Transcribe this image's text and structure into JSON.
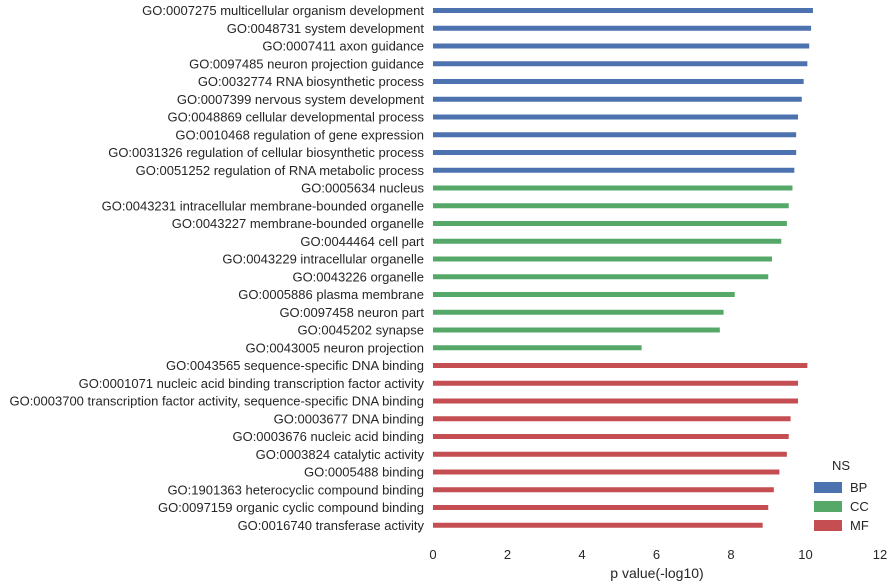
{
  "chart_data": {
    "type": "bar",
    "orientation": "horizontal",
    "categories": [
      "GO:0007275 multicellular organism development",
      "GO:0048731 system development",
      "GO:0007411 axon guidance",
      "GO:0097485 neuron projection guidance",
      "GO:0032774 RNA biosynthetic process",
      "GO:0007399 nervous system development",
      "GO:0048869 cellular developmental process",
      "GO:0010468 regulation of gene expression",
      "GO:0031326 regulation of cellular biosynthetic process",
      "GO:0051252 regulation of RNA metabolic process",
      "GO:0005634 nucleus",
      "GO:0043231 intracellular membrane-bounded organelle",
      "GO:0043227 membrane-bounded organelle",
      "GO:0044464 cell part",
      "GO:0043229 intracellular organelle",
      "GO:0043226 organelle",
      "GO:0005886 plasma membrane",
      "GO:0097458 neuron part",
      "GO:0045202 synapse",
      "GO:0043005 neuron projection",
      "GO:0043565 sequence-specific DNA binding",
      "GO:0001071 nucleic acid binding transcription factor activity",
      "GO:0003700 transcription factor activity, sequence-specific DNA binding",
      "GO:0003677 DNA binding",
      "GO:0003676 nucleic acid binding",
      "GO:0003824 catalytic activity",
      "GO:0005488 binding",
      "GO:1901363 heterocyclic compound binding",
      "GO:0097159 organic cyclic compound binding",
      "GO:0016740 transferase activity"
    ],
    "values": [
      10.2,
      10.15,
      10.1,
      10.05,
      9.95,
      9.9,
      9.8,
      9.75,
      9.75,
      9.7,
      9.65,
      9.55,
      9.5,
      9.35,
      9.1,
      9.0,
      8.1,
      7.8,
      7.7,
      5.6,
      10.05,
      9.8,
      9.8,
      9.6,
      9.55,
      9.5,
      9.3,
      9.15,
      9.0,
      8.85
    ],
    "groups": [
      "BP",
      "BP",
      "BP",
      "BP",
      "BP",
      "BP",
      "BP",
      "BP",
      "BP",
      "BP",
      "CC",
      "CC",
      "CC",
      "CC",
      "CC",
      "CC",
      "CC",
      "CC",
      "CC",
      "CC",
      "MF",
      "MF",
      "MF",
      "MF",
      "MF",
      "MF",
      "MF",
      "MF",
      "MF",
      "MF"
    ],
    "xlabel": "p value(-log10)",
    "xlim": [
      0,
      12
    ],
    "xticks": [
      "0",
      "2",
      "4",
      "6",
      "8",
      "10",
      "12"
    ],
    "grid": false,
    "legend": {
      "title": "NS",
      "placement": "bottom-right",
      "entries": [
        {
          "name": "BP",
          "color": "#4c72b0"
        },
        {
          "name": "CC",
          "color": "#55a868"
        },
        {
          "name": "MF",
          "color": "#c44e52"
        }
      ]
    }
  }
}
